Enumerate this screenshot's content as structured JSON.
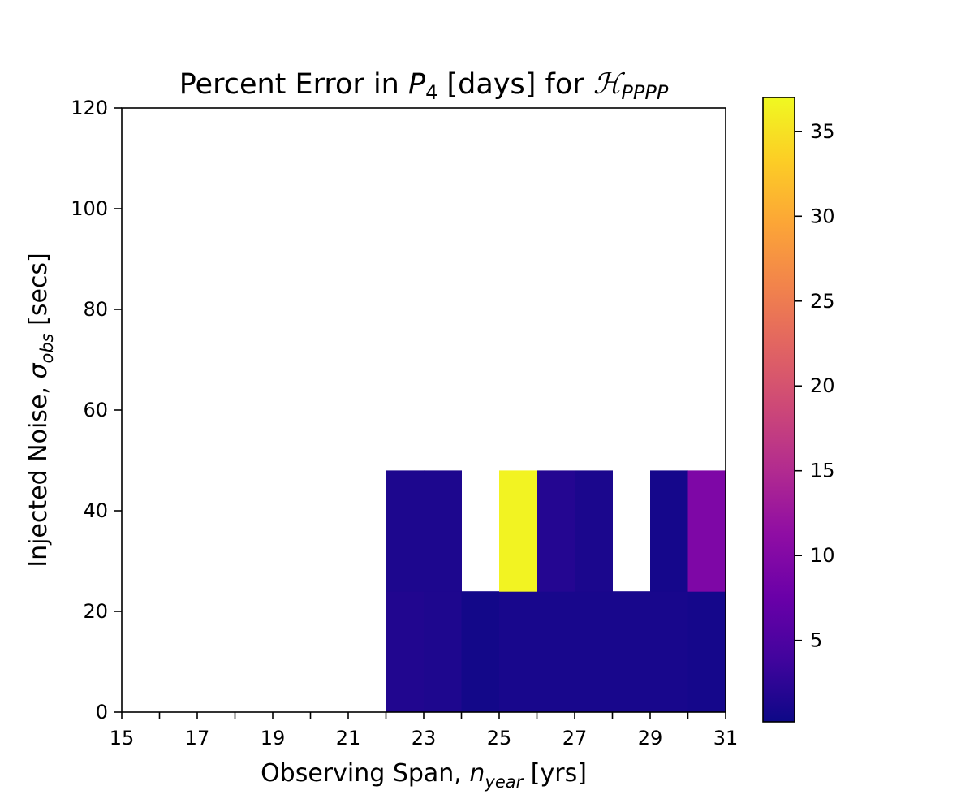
{
  "chart_data": {
    "type": "heatmap",
    "title": "Percent Error in P4 [days] for HPPPP",
    "title_parts": {
      "prefix": "Percent Error in ",
      "symbol": "P",
      "symbol_sub": "4",
      "middle": " [days] for ",
      "script_symbol": "ℋ",
      "script_sub": "PPPP"
    },
    "xlabel": "Observing Span, n_year [yrs]",
    "xlabel_parts": {
      "prefix": "Observing Span, ",
      "symbol": "n",
      "sub": "year",
      "suffix": " [yrs]"
    },
    "ylabel": "Injected Noise, σ_obs [secs]",
    "ylabel_parts": {
      "prefix": "Injected Noise, ",
      "symbol": "σ",
      "sub": "obs",
      "suffix": " [secs]"
    },
    "xlim": [
      15,
      31
    ],
    "ylim": [
      0,
      120
    ],
    "x_ticks": [
      15,
      16,
      17,
      18,
      19,
      20,
      21,
      22,
      23,
      24,
      25,
      26,
      27,
      28,
      29,
      30,
      31
    ],
    "x_tick_labels": [
      "15",
      "",
      "17",
      "",
      "19",
      "",
      "21",
      "",
      "23",
      "",
      "25",
      "",
      "27",
      "",
      "29",
      "",
      "31"
    ],
    "y_ticks": [
      0,
      20,
      40,
      60,
      80,
      100,
      120
    ],
    "y_tick_labels": [
      "0",
      "20",
      "40",
      "60",
      "80",
      "100",
      "120"
    ],
    "colormap": "plasma",
    "color_range": [
      0.2,
      37
    ],
    "colorbar_ticks": [
      5,
      10,
      15,
      20,
      25,
      30,
      35
    ],
    "colorbar_tick_labels": [
      "5",
      "10",
      "15",
      "20",
      "25",
      "30",
      "35"
    ],
    "cells": [
      {
        "x": [
          22,
          23
        ],
        "y": [
          0,
          24
        ],
        "value": 1.6
      },
      {
        "x": [
          23,
          24
        ],
        "y": [
          0,
          24
        ],
        "value": 1.4
      },
      {
        "x": [
          24,
          25
        ],
        "y": [
          0,
          24
        ],
        "value": 0.6
      },
      {
        "x": [
          25,
          26
        ],
        "y": [
          0,
          24
        ],
        "value": 1.0
      },
      {
        "x": [
          26,
          27
        ],
        "y": [
          0,
          24
        ],
        "value": 1.0
      },
      {
        "x": [
          27,
          28
        ],
        "y": [
          0,
          24
        ],
        "value": 1.0
      },
      {
        "x": [
          28,
          29
        ],
        "y": [
          0,
          24
        ],
        "value": 1.0
      },
      {
        "x": [
          29,
          30
        ],
        "y": [
          0,
          24
        ],
        "value": 1.0
      },
      {
        "x": [
          30,
          31
        ],
        "y": [
          0,
          24
        ],
        "value": 0.8
      },
      {
        "x": [
          22,
          23
        ],
        "y": [
          24,
          48
        ],
        "value": 1.3
      },
      {
        "x": [
          23,
          24
        ],
        "y": [
          24,
          48
        ],
        "value": 1.3
      },
      {
        "x": [
          25,
          26
        ],
        "y": [
          24,
          48
        ],
        "value": 36.5
      },
      {
        "x": [
          26,
          27
        ],
        "y": [
          24,
          48
        ],
        "value": 1.8
      },
      {
        "x": [
          27,
          28
        ],
        "y": [
          24,
          48
        ],
        "value": 1.2
      },
      {
        "x": [
          29,
          30
        ],
        "y": [
          24,
          48
        ],
        "value": 0.8
      },
      {
        "x": [
          30,
          31
        ],
        "y": [
          24,
          48
        ],
        "value": 9.5
      }
    ],
    "grid": false,
    "legend": "none"
  }
}
